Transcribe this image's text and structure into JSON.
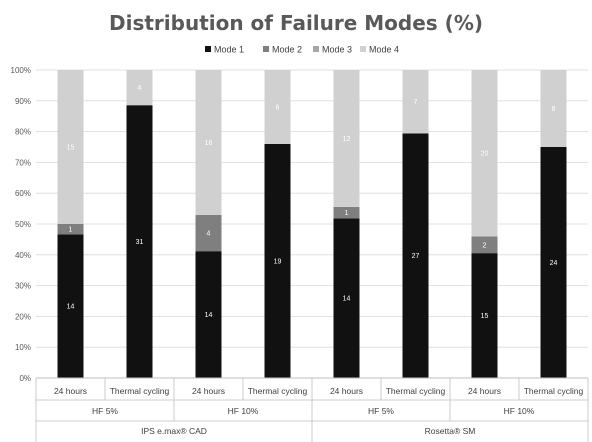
{
  "chart_data": {
    "type": "bar",
    "stacked": true,
    "percent_stacked": true,
    "title": "Distribution of Failure Modes (%)",
    "legend": [
      "Mode 1",
      "Mode 2",
      "Mode 3",
      "Mode 4"
    ],
    "legend_position": "top",
    "yticks": [
      "0%",
      "10%",
      "20%",
      "30%",
      "40%",
      "50%",
      "60%",
      "70%",
      "80%",
      "90%",
      "100%"
    ],
    "ylim": [
      0,
      100
    ],
    "categories": [
      "24 hours",
      "Thermal cycling",
      "24 hours",
      "Thermal cycling",
      "24 hours",
      "Thermal cycling",
      "24 hours",
      "Thermal cycling"
    ],
    "groups_level1": [
      "HF 5%",
      "HF 10%",
      "HF 5%",
      "HF 10%"
    ],
    "groups_level2": [
      "IPS e.max® CAD",
      "Rosetta® SM"
    ],
    "series": [
      {
        "name": "Mode 1",
        "color": "#111111",
        "values": [
          14,
          31,
          14,
          19,
          14,
          27,
          15,
          24
        ],
        "labels": [
          "14",
          "31",
          "14",
          "19",
          "14",
          "27",
          "15",
          "24"
        ]
      },
      {
        "name": "Mode 2",
        "color": "#7f7f7f",
        "values": [
          1,
          0,
          4,
          0,
          1,
          0,
          2,
          0
        ],
        "labels": [
          "1",
          "",
          "4",
          "",
          "1",
          "",
          "2",
          ""
        ]
      },
      {
        "name": "Mode 3",
        "color": "#a6a6a6",
        "values": [
          0,
          0,
          0,
          0,
          0,
          0,
          0,
          0
        ],
        "labels": [
          "",
          "",
          "",
          "",
          "",
          "",
          "",
          ""
        ]
      },
      {
        "name": "Mode 4",
        "color": "#d0d0d0",
        "values": [
          15,
          4,
          16,
          6,
          12,
          7,
          20,
          8
        ],
        "labels": [
          "15",
          "4",
          "16",
          "6",
          "12",
          "7",
          "20",
          "8"
        ]
      }
    ]
  }
}
